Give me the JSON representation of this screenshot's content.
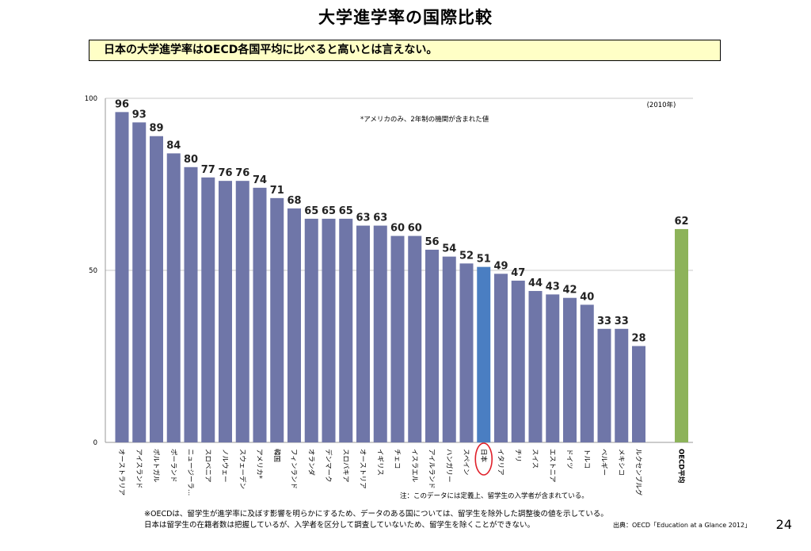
{
  "page": {
    "title": "大学進学率の国際比較",
    "subtitle": "日本の大学進学率はOECD各国平均に比べると高いとは言えない。",
    "page_number": "24",
    "footnotes": [
      "※OECDは、留学生が進学率に及ぼす影響を明らかにするため、データのある国については、留学生を除外した調整後の値を示している。",
      "日本は留学生の在籍者数は把握しているが、入学者を区分して調査していないため、留学生を除くことができない。"
    ],
    "source": "出典：OECD「Education at a Glance 2012」"
  },
  "colors": {
    "bar": "#6f76a8",
    "highlight": "#4a7ec2",
    "oecd": "#8db35a",
    "circle": "#e0202a",
    "grid": "#c8c8c8",
    "axis": "#999999"
  },
  "chart_data": {
    "type": "bar",
    "ylim": [
      0,
      100
    ],
    "yticks": [
      "0",
      "50",
      "100"
    ],
    "year_label": "(2010年)",
    "annotation": "*アメリカのみ、2年制の機関が含まれた値",
    "note": "注：このデータには定義上、留学生の入学者が含まれている。",
    "grid": true,
    "categories": [
      "オーストラリア",
      "アイスランド",
      "ポルトガル",
      "ポーランド",
      "ニュージーラ…",
      "スロベニア",
      "ノルウェー",
      "スウェーデン",
      "アメリカ*",
      "韓国",
      "フィンランド",
      "オランダ",
      "デンマーク",
      "スロバキア",
      "オーストリア",
      "イギリス",
      "チェコ",
      "イスラエル",
      "アイルランド",
      "ハンガリー",
      "スペイン",
      "日本",
      "イタリア",
      "チリ",
      "スイス",
      "エストニア",
      "ドイツ",
      "トルコ",
      "ベルギー",
      "メキシコ",
      "ルクセンブルグ"
    ],
    "values": [
      96,
      93,
      89,
      84,
      80,
      77,
      76,
      76,
      74,
      71,
      68,
      65,
      65,
      65,
      63,
      63,
      60,
      60,
      56,
      54,
      52,
      51,
      49,
      47,
      44,
      43,
      42,
      40,
      33,
      33,
      28
    ],
    "highlight_category": "日本",
    "average": {
      "label": "OECD平均",
      "value": 62
    }
  }
}
